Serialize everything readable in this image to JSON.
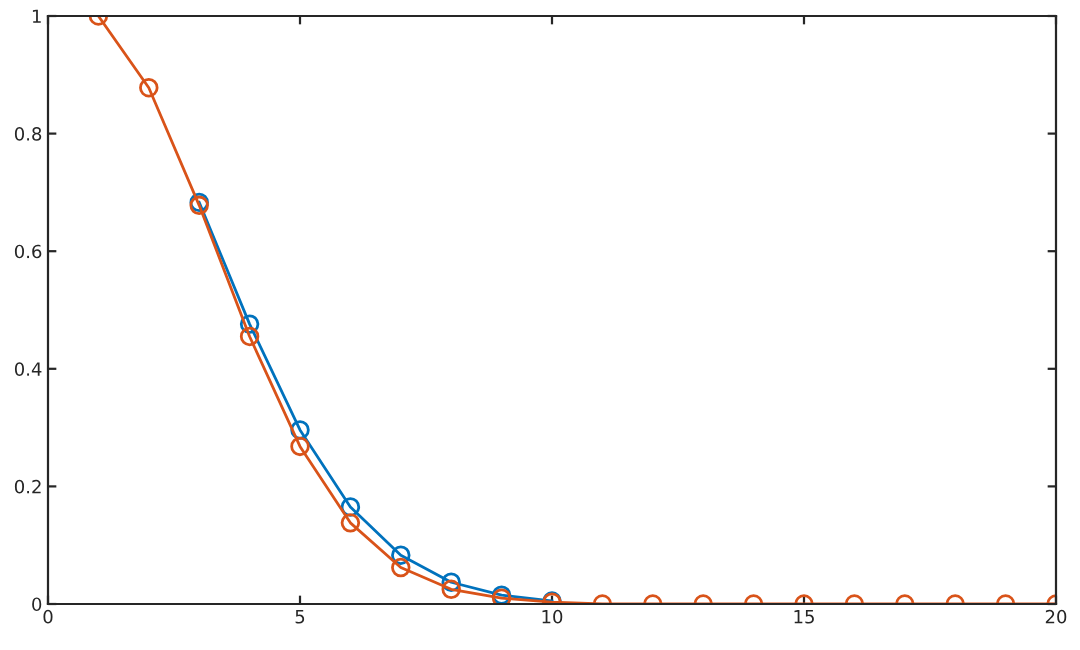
{
  "chart_data": {
    "type": "line",
    "marker": "circle",
    "grid": false,
    "xlim": [
      0,
      20
    ],
    "ylim": [
      0,
      1
    ],
    "xticks": [
      0,
      5,
      10,
      15,
      20
    ],
    "yticks": [
      0,
      0.2,
      0.4,
      0.6,
      0.8,
      1
    ],
    "series": [
      {
        "color": "#0072bd",
        "x": [
          3,
          4,
          5,
          6,
          7,
          8,
          9,
          10
        ],
        "values": [
          0.683,
          0.476,
          0.296,
          0.165,
          0.083,
          0.037,
          0.015,
          0.005
        ]
      },
      {
        "color": "#d95319",
        "x": [
          1,
          2,
          3,
          4,
          5,
          6,
          7,
          8,
          9,
          10,
          11,
          12,
          13,
          14,
          15,
          16,
          17,
          18,
          19,
          20
        ],
        "values": [
          1,
          0.878,
          0.678,
          0.455,
          0.268,
          0.138,
          0.062,
          0.025,
          0.01,
          0.003,
          0,
          0,
          0,
          0,
          0,
          0,
          0,
          0,
          0,
          0
        ]
      }
    ]
  }
}
